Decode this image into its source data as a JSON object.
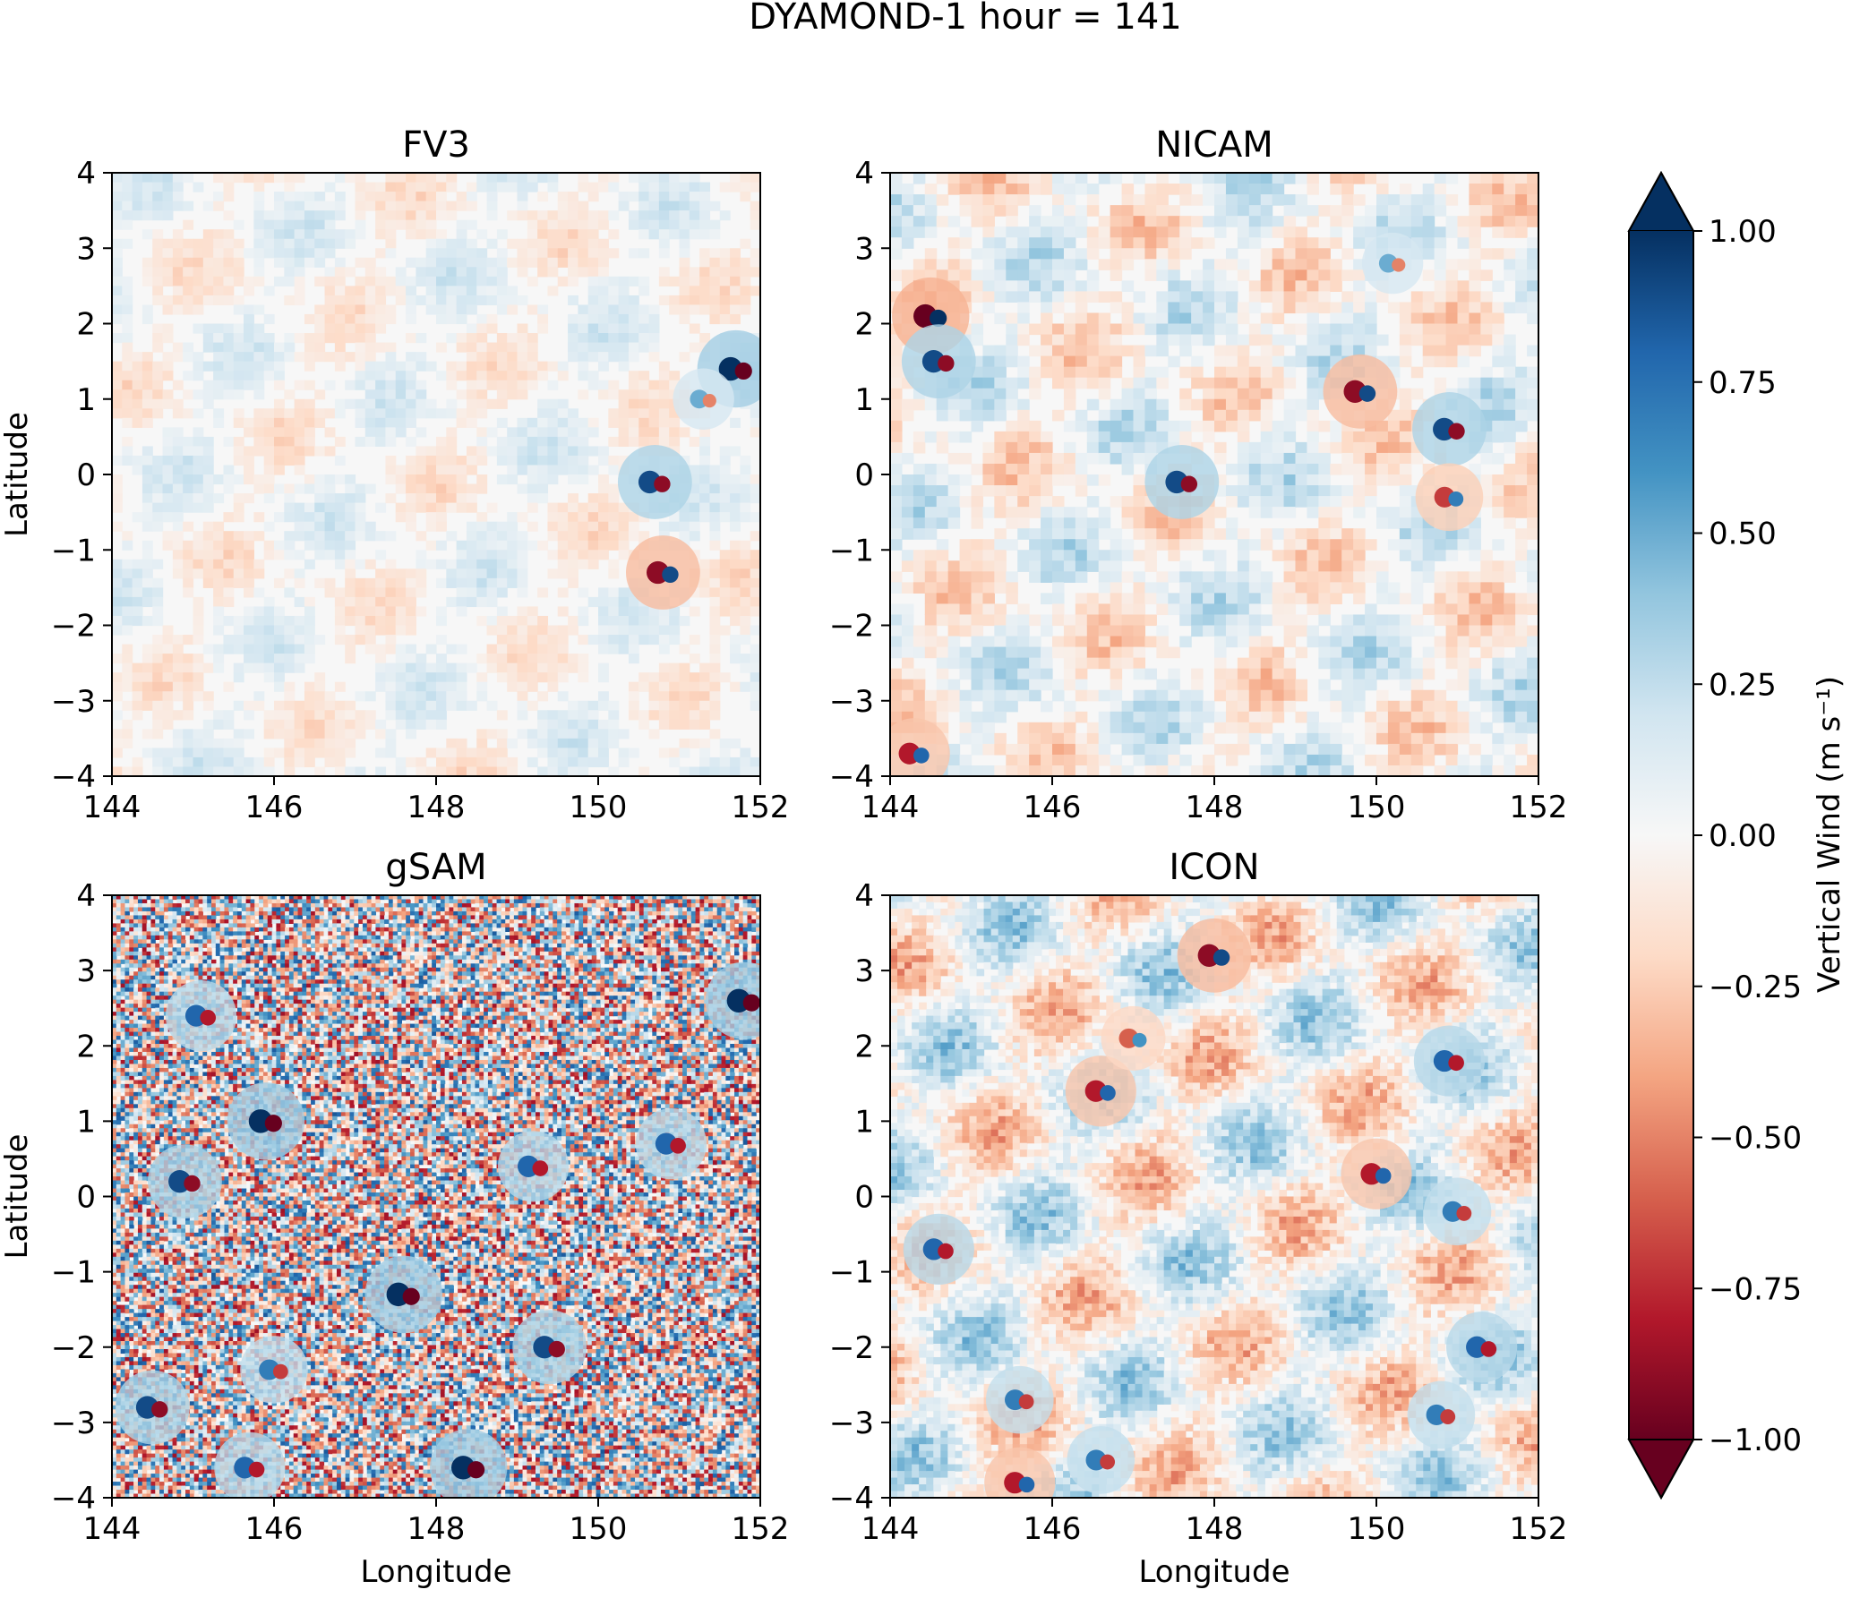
{
  "figure": {
    "suptitle": "DYAMOND-1 hour = 141"
  },
  "chart_data": {
    "type": "heatmap",
    "title": "DYAMOND-1 hour = 141",
    "variable": "Vertical Wind",
    "colormap": "RdBu (red = negative, blue = positive)",
    "panels": [
      {
        "title": "FV3",
        "xlabel": "",
        "ylabel": "Latitude",
        "xlim": [
          144,
          152
        ],
        "ylim": [
          -4,
          4
        ],
        "xticks": [
          "144",
          "146",
          "148",
          "150",
          "152"
        ],
        "yticks": [
          "4",
          "3",
          "2",
          "1",
          "0",
          "−1",
          "−2",
          "−3",
          "−4"
        ],
        "features": [
          {
            "lon": 151.7,
            "lat": 1.4,
            "strength": 1.0
          },
          {
            "lon": 151.3,
            "lat": 1.0,
            "strength": 0.5
          },
          {
            "lon": 150.7,
            "lat": -0.1,
            "strength": 0.9
          },
          {
            "lon": 150.8,
            "lat": -1.3,
            "strength": -0.9
          }
        ]
      },
      {
        "title": "NICAM",
        "xlabel": "",
        "ylabel": "",
        "xlim": [
          144,
          152
        ],
        "ylim": [
          -4,
          4
        ],
        "xticks": [
          "144",
          "146",
          "148",
          "150",
          "152"
        ],
        "yticks": [
          "4",
          "3",
          "2",
          "1",
          "0",
          "−1",
          "−2",
          "−3",
          "−4"
        ],
        "features": [
          {
            "lon": 144.5,
            "lat": 2.1,
            "strength": -1.0
          },
          {
            "lon": 144.6,
            "lat": 1.5,
            "strength": 0.9
          },
          {
            "lon": 149.8,
            "lat": 1.1,
            "strength": -0.9
          },
          {
            "lon": 150.9,
            "lat": 0.6,
            "strength": 0.9
          },
          {
            "lon": 147.6,
            "lat": -0.1,
            "strength": 0.9
          },
          {
            "lon": 150.9,
            "lat": -0.3,
            "strength": -0.7
          },
          {
            "lon": 150.2,
            "lat": 2.8,
            "strength": 0.5
          },
          {
            "lon": 144.3,
            "lat": -3.7,
            "strength": -0.8
          }
        ]
      },
      {
        "title": "gSAM",
        "xlabel": "Longitude",
        "ylabel": "Latitude",
        "xlim": [
          144,
          152
        ],
        "ylim": [
          -4,
          4
        ],
        "xticks": [
          "144",
          "146",
          "148",
          "150",
          "152"
        ],
        "yticks": [
          "4",
          "3",
          "2",
          "1",
          "0",
          "−1",
          "−2",
          "−3",
          "−4"
        ],
        "features": [
          {
            "lon": 145.9,
            "lat": 1.0,
            "strength": 1.0
          },
          {
            "lon": 144.9,
            "lat": 0.2,
            "strength": 0.9
          },
          {
            "lon": 147.6,
            "lat": -1.3,
            "strength": 1.0
          },
          {
            "lon": 149.4,
            "lat": -2.0,
            "strength": 0.9
          },
          {
            "lon": 144.5,
            "lat": -2.8,
            "strength": 0.9
          },
          {
            "lon": 148.4,
            "lat": -3.6,
            "strength": 1.0
          },
          {
            "lon": 151.8,
            "lat": 2.6,
            "strength": 1.0
          },
          {
            "lon": 145.1,
            "lat": 2.4,
            "strength": 0.8
          },
          {
            "lon": 149.2,
            "lat": 0.4,
            "strength": 0.8
          },
          {
            "lon": 150.9,
            "lat": 0.7,
            "strength": 0.8
          },
          {
            "lon": 145.7,
            "lat": -3.6,
            "strength": 0.8
          },
          {
            "lon": 146.0,
            "lat": -2.3,
            "strength": 0.7
          }
        ]
      },
      {
        "title": "ICON",
        "xlabel": "Longitude",
        "ylabel": "",
        "xlim": [
          144,
          152
        ],
        "ylim": [
          -4,
          4
        ],
        "xticks": [
          "144",
          "146",
          "148",
          "150",
          "152"
        ],
        "yticks": [
          "4",
          "3",
          "2",
          "1",
          "0",
          "−1",
          "−2",
          "−3",
          "−4"
        ],
        "features": [
          {
            "lon": 148.0,
            "lat": 3.2,
            "strength": -0.9
          },
          {
            "lon": 150.9,
            "lat": 1.8,
            "strength": 0.8
          },
          {
            "lon": 146.6,
            "lat": 1.4,
            "strength": -0.8
          },
          {
            "lon": 150.0,
            "lat": 0.3,
            "strength": -0.8
          },
          {
            "lon": 151.0,
            "lat": -0.2,
            "strength": 0.7
          },
          {
            "lon": 144.6,
            "lat": -0.7,
            "strength": 0.8
          },
          {
            "lon": 151.3,
            "lat": -2.0,
            "strength": 0.8
          },
          {
            "lon": 145.6,
            "lat": -2.7,
            "strength": 0.7
          },
          {
            "lon": 150.8,
            "lat": -2.9,
            "strength": 0.7
          },
          {
            "lon": 145.6,
            "lat": -3.8,
            "strength": -0.8
          },
          {
            "lon": 146.6,
            "lat": -3.5,
            "strength": 0.7
          },
          {
            "lon": 147.0,
            "lat": 2.1,
            "strength": -0.6
          }
        ]
      }
    ],
    "colorbar": {
      "label": "Vertical Wind (m s⁻¹)",
      "range": [
        -1.0,
        1.0
      ],
      "extend": "both",
      "ticks": [
        "1.00",
        "0.75",
        "0.50",
        "0.25",
        "0.00",
        "−0.25",
        "−0.50",
        "−0.75",
        "−1.00"
      ],
      "tick_values": [
        1.0,
        0.75,
        0.5,
        0.25,
        0.0,
        -0.25,
        -0.5,
        -0.75,
        -1.0
      ]
    }
  }
}
